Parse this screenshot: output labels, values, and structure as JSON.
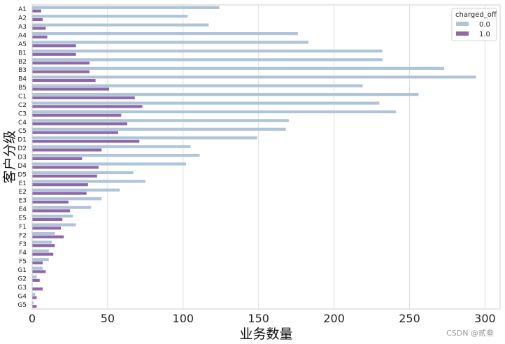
{
  "chart_data": {
    "type": "bar",
    "orientation": "horizontal",
    "categories": [
      "A1",
      "A2",
      "A3",
      "A4",
      "A5",
      "B1",
      "B2",
      "B3",
      "B4",
      "B5",
      "C1",
      "C2",
      "C3",
      "C4",
      "C5",
      "D1",
      "D2",
      "D3",
      "D4",
      "D5",
      "E1",
      "E2",
      "E3",
      "E4",
      "E5",
      "F1",
      "F2",
      "F3",
      "F4",
      "F5",
      "G1",
      "G2",
      "G3",
      "G4",
      "G5"
    ],
    "series": [
      {
        "name": "0.0",
        "color": "#afc3d9",
        "values": [
          124,
          103,
          117,
          176,
          183,
          232,
          232,
          273,
          294,
          219,
          256,
          230,
          241,
          170,
          168,
          149,
          105,
          111,
          102,
          67,
          75,
          58,
          46,
          39,
          27,
          29,
          15,
          13,
          11,
          11,
          7,
          3,
          0,
          2,
          1
        ]
      },
      {
        "name": "1.0",
        "color": "#8e69a8",
        "values": [
          6,
          7,
          9,
          10,
          29,
          29,
          38,
          38,
          42,
          51,
          68,
          73,
          59,
          63,
          57,
          71,
          46,
          33,
          44,
          43,
          37,
          36,
          24,
          25,
          20,
          19,
          21,
          15,
          14,
          7,
          9,
          5,
          7,
          3,
          3
        ]
      }
    ],
    "xlabel": "业务数量",
    "ylabel": "客户分级",
    "xlim": [
      0,
      310
    ],
    "xticks": [
      0,
      50,
      100,
      150,
      200,
      250,
      300
    ],
    "grid": "vertical",
    "legend": {
      "title": "charged_off",
      "position": "top-right"
    }
  },
  "watermark": "CSDN @贰叁"
}
